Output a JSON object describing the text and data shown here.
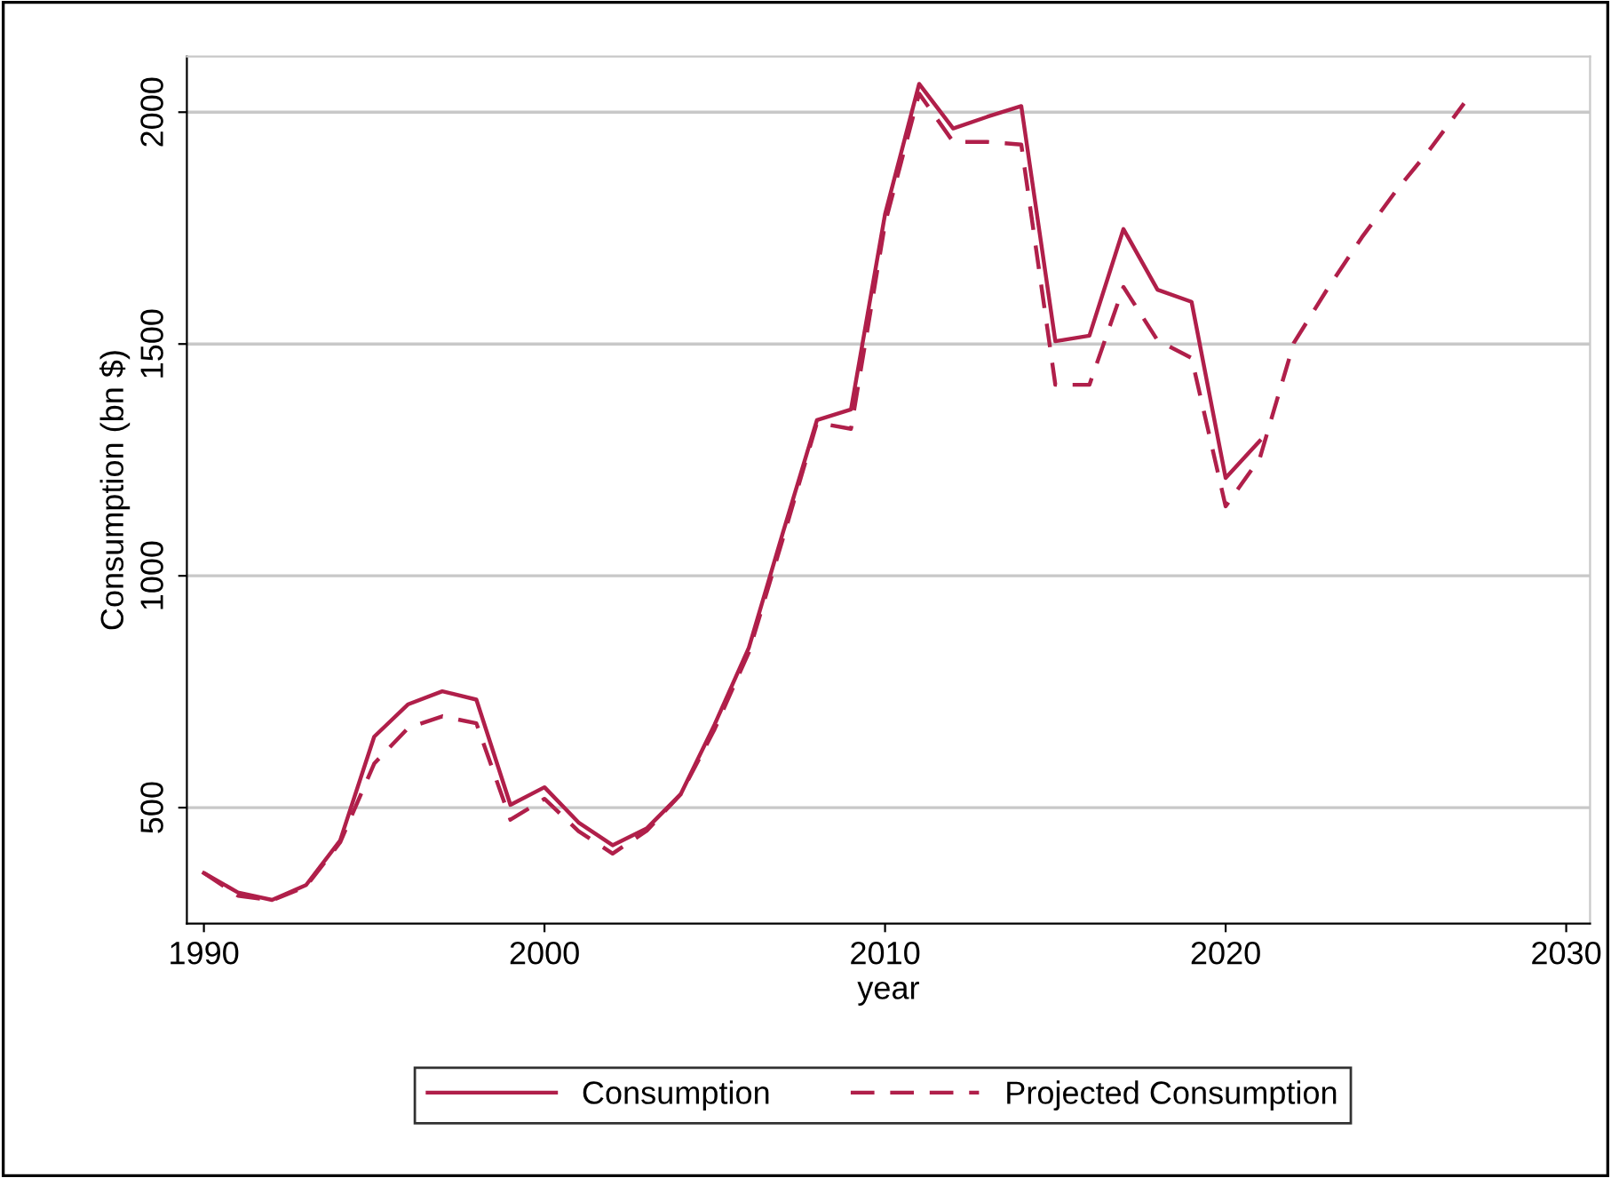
{
  "chart_data": {
    "type": "line",
    "xlabel": "year",
    "ylabel": "Consumption (bn $)",
    "series": [
      {
        "name": "Consumption",
        "color": "#b01f4a",
        "line_style": "solid",
        "x": [
          1990,
          1991,
          1992,
          1993,
          1994,
          1995,
          1996,
          1997,
          1998,
          1999,
          2000,
          2001,
          2002,
          2003,
          2004,
          2005,
          2006,
          2007,
          2008,
          2009,
          2010,
          2011,
          2012,
          2013,
          2014,
          2015,
          2016,
          2017,
          2018,
          2019,
          2020,
          2021
        ],
        "values": [
          359,
          317,
          301,
          333,
          429,
          653,
          723,
          751,
          733,
          506,
          544,
          468,
          419,
          455,
          529,
          680,
          845,
          1093,
          1336,
          1359,
          1780,
          2061,
          1965,
          1990,
          2013,
          1506,
          1518,
          1748,
          1617,
          1591,
          1211,
          1291
        ]
      },
      {
        "name": "Projected Consumption",
        "color": "#b01f4a",
        "line_style": "dashed",
        "x": [
          1990,
          1991,
          1992,
          1993,
          1994,
          1995,
          1996,
          1997,
          1998,
          1999,
          2000,
          2001,
          2002,
          2003,
          2004,
          2005,
          2006,
          2007,
          2008,
          2009,
          2010,
          2011,
          2012,
          2013,
          2014,
          2015,
          2016,
          2017,
          2018,
          2019,
          2020,
          2021,
          2022,
          2023,
          2024,
          2025,
          2026,
          2027
        ],
        "values": [
          359,
          310,
          300,
          330,
          425,
          595,
          672,
          697,
          682,
          474,
          519,
          449,
          401,
          450,
          529,
          670,
          835,
          1080,
          1330,
          1317,
          1760,
          2040,
          1936,
          1936,
          1930,
          1412,
          1412,
          1623,
          1508,
          1470,
          1150,
          1253,
          1502,
          1620,
          1730,
          1830,
          1920,
          2019
        ]
      }
    ],
    "xlim": [
      1989.5,
      2030.7
    ],
    "ylim": [
      250,
      2120
    ],
    "xticks": [
      1990,
      2000,
      2010,
      2020,
      2030
    ],
    "yticks": [
      500,
      1000,
      1500,
      2000
    ],
    "grid": "y",
    "legend": "bottom",
    "marker": "none"
  }
}
